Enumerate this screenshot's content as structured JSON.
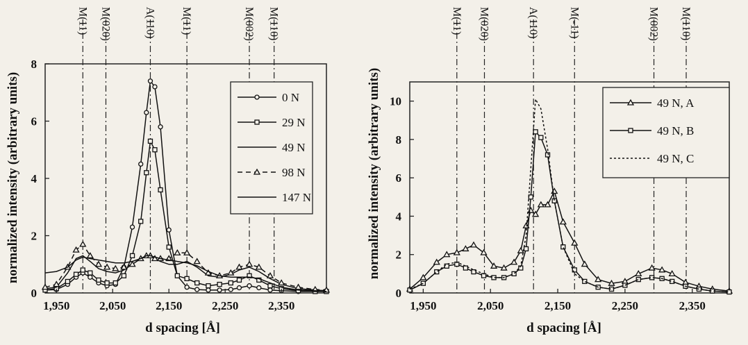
{
  "chart_data": [
    {
      "type": "line",
      "xlabel": "d spacing [Å]",
      "ylabel": "normalized intensity (arbitrary units)",
      "xlim": [
        1.93,
        2.43
      ],
      "ylim": [
        0,
        8
      ],
      "xticks": [
        "1,950",
        "2,050",
        "2,150",
        "2,250",
        "2,350"
      ],
      "yticks": [
        "0",
        "2",
        "4",
        "6",
        "8"
      ],
      "reference_lines": [
        {
          "label": "M(11)",
          "x": 1.997
        },
        {
          "label": "M(020)",
          "x": 2.038
        },
        {
          "label": "A(110)",
          "x": 2.117
        },
        {
          "label": "M(11)",
          "x": 2.182
        },
        {
          "label": "M(002)",
          "x": 2.293
        },
        {
          "label": "M(110)",
          "x": 2.337
        }
      ],
      "legend": {
        "placement": "top-right"
      },
      "x": [
        1.93,
        1.95,
        1.97,
        1.985,
        1.997,
        2.01,
        2.025,
        2.04,
        2.055,
        2.07,
        2.085,
        2.1,
        2.11,
        2.117,
        2.125,
        2.135,
        2.15,
        2.165,
        2.182,
        2.2,
        2.22,
        2.24,
        2.26,
        2.275,
        2.293,
        2.31,
        2.33,
        2.35,
        2.38,
        2.41,
        2.43
      ],
      "series": [
        {
          "name": "0 N",
          "marker": "circle",
          "dash": "",
          "values": [
            0.1,
            0.12,
            0.3,
            0.55,
            0.7,
            0.55,
            0.35,
            0.25,
            0.3,
            0.9,
            2.3,
            4.5,
            6.3,
            7.4,
            7.2,
            5.8,
            2.2,
            0.6,
            0.2,
            0.12,
            0.1,
            0.1,
            0.12,
            0.18,
            0.25,
            0.18,
            0.1,
            0.08,
            0.05,
            0.05,
            0.05
          ]
        },
        {
          "name": "29 N",
          "marker": "square",
          "dash": "",
          "values": [
            0.1,
            0.15,
            0.4,
            0.65,
            0.8,
            0.7,
            0.45,
            0.35,
            0.35,
            0.6,
            1.3,
            2.5,
            4.2,
            5.3,
            5.0,
            3.6,
            1.6,
            0.6,
            0.5,
            0.35,
            0.25,
            0.3,
            0.35,
            0.45,
            0.6,
            0.45,
            0.25,
            0.15,
            0.08,
            0.05,
            0.05
          ]
        },
        {
          "name": "49 N",
          "marker": "none",
          "dash": "",
          "values": [
            0.15,
            0.2,
            0.7,
            1.2,
            1.3,
            1.1,
            0.85,
            0.75,
            0.7,
            0.8,
            1.0,
            1.2,
            1.3,
            1.3,
            1.2,
            1.1,
            1.0,
            1.0,
            1.1,
            0.9,
            0.6,
            0.55,
            0.65,
            0.8,
            0.9,
            0.75,
            0.5,
            0.3,
            0.15,
            0.1,
            0.08
          ]
        },
        {
          "name": "98 N",
          "marker": "triangle",
          "dash": "7,5",
          "values": [
            0.2,
            0.3,
            0.9,
            1.5,
            1.7,
            1.3,
            1.0,
            0.9,
            0.85,
            0.9,
            1.0,
            1.2,
            1.3,
            1.3,
            1.2,
            1.2,
            1.2,
            1.4,
            1.4,
            1.1,
            0.7,
            0.6,
            0.7,
            0.9,
            1.0,
            0.9,
            0.6,
            0.35,
            0.2,
            0.12,
            0.1
          ]
        },
        {
          "name": "147 N",
          "marker": "none",
          "dash": "",
          "values": [
            0.7,
            0.75,
            0.9,
            1.15,
            1.25,
            1.2,
            1.15,
            1.1,
            1.05,
            1.05,
            1.1,
            1.2,
            1.3,
            1.3,
            1.25,
            1.2,
            1.15,
            1.1,
            1.05,
            0.95,
            0.75,
            0.6,
            0.55,
            0.55,
            0.55,
            0.5,
            0.35,
            0.2,
            0.1,
            0.08,
            0.05
          ]
        }
      ]
    },
    {
      "type": "line",
      "xlabel": "d spacing [Å]",
      "ylabel": "normalized intensity (arbitrary units)",
      "xlim": [
        1.93,
        2.405
      ],
      "ylim": [
        0,
        11
      ],
      "xticks": [
        "1,950",
        "2,050",
        "2,150",
        "2,250",
        "2,350"
      ],
      "yticks": [
        "0",
        "2",
        "4",
        "6",
        "8",
        "10"
      ],
      "reference_lines": [
        {
          "label": "M(11)",
          "x": 2.0
        },
        {
          "label": "M(020)",
          "x": 2.041
        },
        {
          "label": "A(110)",
          "x": 2.114
        },
        {
          "label": "M(-11)",
          "x": 2.175
        },
        {
          "label": "M(002)",
          "x": 2.293
        },
        {
          "label": "M(110)",
          "x": 2.341
        }
      ],
      "legend": {
        "placement": "top-right"
      },
      "x": [
        1.93,
        1.95,
        1.97,
        1.985,
        2.0,
        2.013,
        2.025,
        2.04,
        2.055,
        2.07,
        2.085,
        2.095,
        2.103,
        2.11,
        2.117,
        2.125,
        2.135,
        2.145,
        2.158,
        2.175,
        2.19,
        2.21,
        2.23,
        2.25,
        2.27,
        2.29,
        2.305,
        2.32,
        2.34,
        2.36,
        2.38,
        2.405
      ],
      "series": [
        {
          "name": "49 N, A",
          "marker": "triangle",
          "dash": "",
          "values": [
            0.2,
            0.8,
            1.6,
            2.0,
            2.1,
            2.3,
            2.5,
            2.1,
            1.4,
            1.3,
            1.6,
            2.2,
            3.5,
            4.3,
            4.1,
            4.6,
            4.6,
            5.3,
            3.7,
            2.6,
            1.5,
            0.7,
            0.5,
            0.6,
            1.0,
            1.3,
            1.2,
            1.0,
            0.55,
            0.35,
            0.2,
            0.1
          ]
        },
        {
          "name": "49 N, B",
          "marker": "square",
          "dash": "",
          "values": [
            0.15,
            0.5,
            1.1,
            1.4,
            1.5,
            1.3,
            1.1,
            0.9,
            0.8,
            0.8,
            1.0,
            1.3,
            2.3,
            5.0,
            8.4,
            8.1,
            7.2,
            4.8,
            2.4,
            1.2,
            0.6,
            0.3,
            0.2,
            0.4,
            0.7,
            0.8,
            0.75,
            0.6,
            0.35,
            0.2,
            0.1,
            0.05
          ]
        },
        {
          "name": "49 N, C",
          "marker": "none",
          "dash": "3,3",
          "values": [
            0.2,
            0.5,
            1.1,
            1.5,
            1.6,
            1.4,
            1.2,
            1.0,
            0.8,
            0.8,
            1.0,
            1.4,
            3.0,
            6.5,
            10.1,
            9.6,
            7.5,
            4.8,
            2.4,
            1.0,
            0.6,
            0.3,
            0.2,
            0.4,
            0.7,
            0.8,
            0.75,
            0.6,
            0.35,
            0.2,
            0.1,
            0.05
          ]
        }
      ]
    }
  ]
}
